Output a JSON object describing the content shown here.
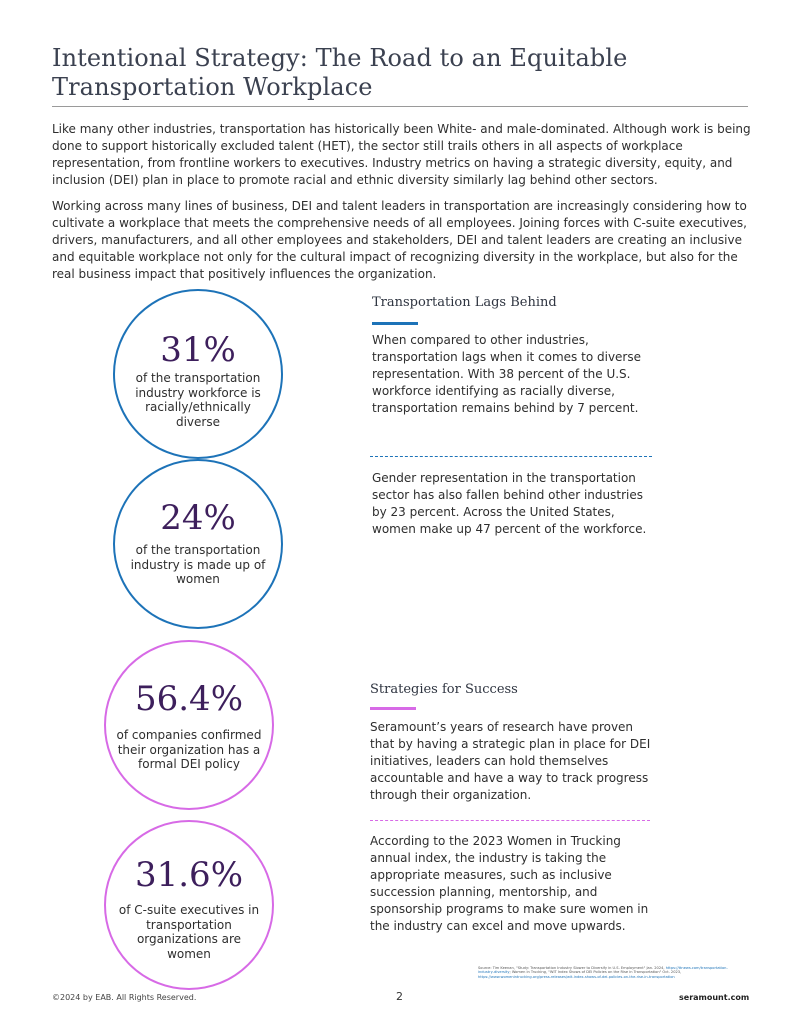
{
  "title": "Intentional Strategy: The Road to an Equitable Transportation Workplace",
  "intro": [
    "Like many other industries, transportation has historically been White- and male-dominated. Although work is being done to support historically excluded talent (HET), the sector still trails others in all aspects of workplace representation, from frontline workers to executives. Industry metrics on having a strategic diversity, equity, and inclusion (DEI) plan in place to promote racial and ethnic diversity similarly lag behind other sectors.",
    "Working across many lines of business, DEI and talent leaders in transportation are increasingly considering how to cultivate a workplace that meets the comprehensive needs of all employees. Joining forces with C-suite executives, drivers, manufacturers, and all other employees and stakeholders, DEI and talent leaders are creating an inclusive and equitable workplace not only for the cultural impact of recognizing diversity in the workplace, but also for the real business impact that positively influences the organization."
  ],
  "stats": [
    {
      "value": "31%",
      "caption": "of the transportation industry workforce is racially/ethnically diverse",
      "color": "#1d73b8"
    },
    {
      "value": "24%",
      "caption": "of the transportation industry is made up of women",
      "color": "#1d73b8"
    },
    {
      "value": "56.4%",
      "caption": "of companies confirmed their organization has a formal DEI policy",
      "color": "#d76ae6"
    },
    {
      "value": "31.6%",
      "caption": "of C-suite executives in transportation organizations are women",
      "color": "#d76ae6"
    }
  ],
  "section1": {
    "heading": "Transportation Lags Behind",
    "p1": "When compared to other industries, transportation lags when it comes to diverse representation. With 38 percent of the U.S. workforce identifying as racially diverse, transportation remains behind by 7 percent.",
    "p2": "Gender representation in the transportation sector has also fallen behind other industries by 23 percent. Across the United States, women make up 47 percent of the workforce.",
    "accent_color": "#1d73b8"
  },
  "section2": {
    "heading": "Strategies for Success",
    "p1": "Seramount’s years of research have proven that by having a strategic plan in place for DEI initiatives, leaders can hold themselves accountable and have a way to track progress through their organization.",
    "p2": "According to the 2023 Women in Trucking annual index, the industry is taking the appropriate measures, such as inclusive succession planning, mentorship, and sponsorship programs to make sure women in the industry can excel and move upwards.",
    "accent_color": "#d76ae6"
  },
  "sources": {
    "text": "Source: Tim Keenan, \"Study: Transportation Industry Slower to Diversify in U.S. Employment\" Jan. 2024,",
    "link1": "https://ttnews.com/transportation-industry-diversity",
    "text2": "; Women in Trucking, \"WIT Index Shows of DEI Policies on the Rise in Transportation\" Oct. 2023,",
    "link2": "https://www.womenintrucking.org/press-releases/wit-index-shows-of-dei-policies-on-the-rise-in-transportation"
  },
  "footer": {
    "copyright": "©2024 by EAB. All Rights Reserved.",
    "page": "2",
    "site": "seramount.com"
  }
}
